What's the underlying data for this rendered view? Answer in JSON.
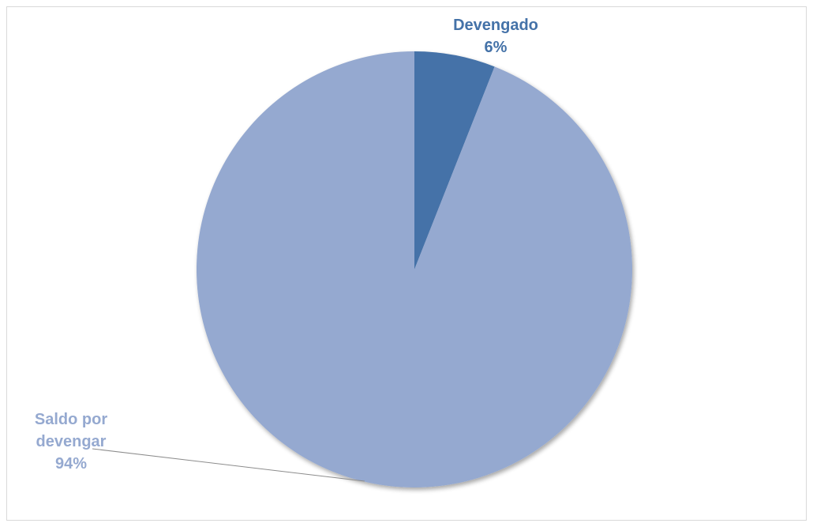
{
  "chart_data": {
    "type": "pie",
    "title": "",
    "series": [
      {
        "categories": [
          "Devengado",
          "Saldo por devengar"
        ],
        "values": [
          6,
          94
        ]
      }
    ],
    "slices": [
      {
        "label": "Devengado",
        "value": 6,
        "percent_text": "6%",
        "color": "#4472A8",
        "label_lines": [
          "Devengado",
          "6%"
        ]
      },
      {
        "label": "Saldo por devengar",
        "value": 94,
        "percent_text": "94%",
        "color": "#95A9D0",
        "label_lines": [
          "Saldo por",
          "devengar",
          "94%"
        ]
      }
    ],
    "legend": "none",
    "data_labels": "category and percentage",
    "leader_line_color": "#8C8C8C"
  }
}
